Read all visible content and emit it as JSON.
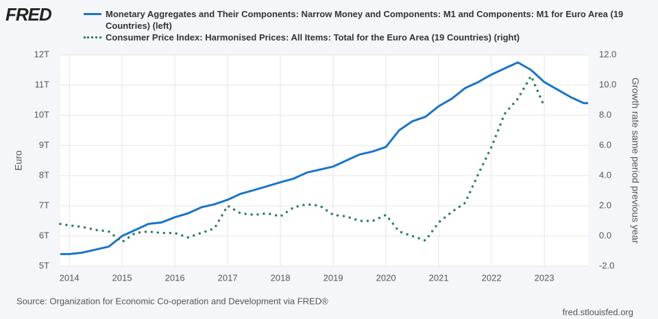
{
  "logo": "FRED",
  "chart_data": {
    "type": "line",
    "source": "Source: Organization for Economic Co-operation and Development via FRED®",
    "site": "fred.stlouisfed.org",
    "ylabel": "Euro",
    "y2label": "Growth rate same period previous year",
    "x": [
      2013.83,
      2014.0,
      2014.25,
      2014.5,
      2014.75,
      2015.0,
      2015.25,
      2015.5,
      2015.75,
      2016.0,
      2016.25,
      2016.5,
      2016.75,
      2017.0,
      2017.25,
      2017.5,
      2017.75,
      2018.0,
      2018.25,
      2018.5,
      2018.75,
      2019.0,
      2019.25,
      2019.5,
      2019.75,
      2020.0,
      2020.25,
      2020.5,
      2020.75,
      2021.0,
      2021.25,
      2021.5,
      2021.75,
      2022.0,
      2022.25,
      2022.5,
      2022.75,
      2023.0,
      2023.25,
      2023.5,
      2023.75,
      2023.83
    ],
    "xlim": [
      2013.83,
      2023.83
    ],
    "xticks": [
      2014,
      2015,
      2016,
      2017,
      2018,
      2019,
      2020,
      2021,
      2022,
      2023
    ],
    "ylim": [
      5,
      12
    ],
    "yticks": [
      {
        "value": 5,
        "label": "5T"
      },
      {
        "value": 6,
        "label": "6T"
      },
      {
        "value": 7,
        "label": "7T"
      },
      {
        "value": 8,
        "label": "8T"
      },
      {
        "value": 9,
        "label": "9T"
      },
      {
        "value": 10,
        "label": "10T"
      },
      {
        "value": 11,
        "label": "11T"
      },
      {
        "value": 12,
        "label": "12T"
      }
    ],
    "y2lim": [
      -2,
      12
    ],
    "y2ticks": [
      {
        "value": -2,
        "label": "-2.0"
      },
      {
        "value": 0,
        "label": "0.0"
      },
      {
        "value": 2,
        "label": "2.0"
      },
      {
        "value": 4,
        "label": "4.0"
      },
      {
        "value": 6,
        "label": "6.0"
      },
      {
        "value": 8,
        "label": "8.0"
      },
      {
        "value": 10,
        "label": "10.0"
      },
      {
        "value": 12,
        "label": "12.0"
      }
    ],
    "grid": true,
    "series": [
      {
        "name": "Monetary Aggregates and Their Components: Narrow Money and Components: M1 and Components: M1 for Euro Area (19 Countries) (left)",
        "color": "#1a73c8",
        "dash": "solid",
        "values": [
          5.4,
          5.4,
          5.45,
          5.55,
          5.65,
          6.0,
          6.2,
          6.4,
          6.45,
          6.62,
          6.75,
          6.95,
          7.05,
          7.2,
          7.4,
          7.52,
          7.65,
          7.78,
          7.9,
          8.1,
          8.2,
          8.3,
          8.5,
          8.7,
          8.8,
          8.95,
          9.5,
          9.8,
          9.95,
          10.3,
          10.55,
          10.9,
          11.1,
          11.35,
          11.55,
          11.75,
          11.5,
          11.1,
          10.85,
          10.6,
          10.4,
          10.4
        ]
      },
      {
        "name": "Consumer Price Index: Harmonised Prices: All Items: Total for the Euro Area (19 Countries) (right)",
        "color": "#2a8060",
        "dash": "dotted",
        "axis": "y2",
        "values": [
          0.8,
          0.7,
          0.6,
          0.4,
          0.3,
          -0.4,
          0.2,
          0.3,
          0.2,
          0.2,
          -0.1,
          0.2,
          0.5,
          2.0,
          1.5,
          1.4,
          1.5,
          1.3,
          1.9,
          2.1,
          2.0,
          1.4,
          1.3,
          1.0,
          1.0,
          1.4,
          0.3,
          0.0,
          -0.3,
          0.9,
          1.6,
          2.2,
          4.1,
          5.9,
          8.1,
          9.1,
          10.6,
          8.6,
          null,
          null,
          null,
          null
        ]
      }
    ]
  }
}
